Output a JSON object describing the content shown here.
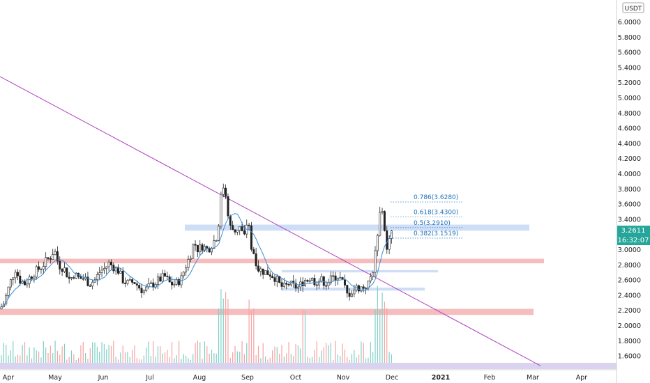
{
  "chart_data": {
    "type": "candlestick",
    "symbol_currency": "USDT",
    "last_price": "3.2611",
    "countdown": "16:32:07",
    "y_range": [
      1.45,
      6.2
    ],
    "y_ticks": [
      "1.6000",
      "1.8000",
      "2.0000",
      "2.2000",
      "2.4000",
      "2.6000",
      "2.8000",
      "3.0000",
      "3.2000",
      "3.4000",
      "3.6000",
      "3.8000",
      "4.0000",
      "4.2000",
      "4.4000",
      "4.6000",
      "4.8000",
      "5.0000",
      "5.2000",
      "5.4000",
      "5.6000",
      "5.8000",
      "6.0000"
    ],
    "x_labels": [
      "Apr",
      "May",
      "Jun",
      "Jul",
      "Aug",
      "Sep",
      "Oct",
      "Nov",
      "Dec",
      "2021",
      "Feb",
      "Mar",
      "Apr"
    ],
    "fib_levels": [
      {
        "label": "0.786(3.6280)",
        "value": 3.628
      },
      {
        "label": "0.618(3.4300)",
        "value": 3.43
      },
      {
        "label": "0.5(3.2910)",
        "value": 3.291
      },
      {
        "label": "0.382(3.1519)",
        "value": 3.1519
      }
    ],
    "zones": [
      {
        "name": "upper-resistance-zone",
        "low": 3.25,
        "high": 3.33,
        "color": "#c9daf5"
      },
      {
        "name": "support-zone-2.85",
        "low": 2.82,
        "high": 2.88,
        "color": "#f4b6b6"
      },
      {
        "name": "mid-zone-2.72",
        "low": 2.7,
        "high": 2.73,
        "color": "#c9daf5"
      },
      {
        "name": "mid-zone-2.48",
        "low": 2.46,
        "high": 2.5,
        "color": "#c9daf5"
      },
      {
        "name": "support-zone-2.18",
        "low": 2.14,
        "high": 2.22,
        "color": "#f4b6b6"
      }
    ],
    "trendline": {
      "from": {
        "date": "Mar 2020",
        "price": 5.28
      },
      "to": {
        "date": "Mar 2021",
        "price": 1.47
      },
      "color": "#b040c0"
    },
    "colors": {
      "up": "#26a69a",
      "down": "#ef5350",
      "candle_body": "#222222",
      "ma": "#3b8fd6",
      "price_tag": "#26a69a"
    }
  }
}
